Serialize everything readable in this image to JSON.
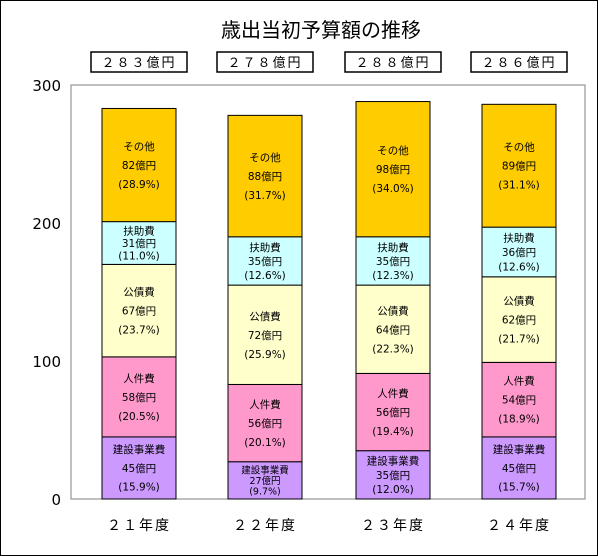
{
  "chart_data": {
    "type": "bar",
    "stacked": true,
    "title": "歳出当初予算額の推移",
    "categories": [
      "２１年度",
      "２２年度",
      "２３年度",
      "２４年度"
    ],
    "totals": [
      "２８３億円",
      "２７８億円",
      "２８８億円",
      "２８６億円"
    ],
    "total_values": [
      283,
      278,
      288,
      286
    ],
    "ylim": [
      0,
      300
    ],
    "yticks": [
      "0",
      "100",
      "200",
      "300"
    ],
    "grid": false,
    "legend": "none",
    "series": [
      {
        "name": "建設事業費",
        "color": "#cc99ff",
        "values": [
          45,
          27,
          35,
          45
        ],
        "amounts": [
          "45億円",
          "27億円",
          "35億円",
          "45億円"
        ],
        "shares": [
          "(15.9%)",
          "(9.7%)",
          "(12.0%)",
          "(15.7%)"
        ]
      },
      {
        "name": "人件費",
        "color": "#ff99cc",
        "values": [
          58,
          56,
          56,
          54
        ],
        "amounts": [
          "58億円",
          "56億円",
          "56億円",
          "54億円"
        ],
        "shares": [
          "(20.5%)",
          "(20.1%)",
          "(19.4%)",
          "(18.9%)"
        ]
      },
      {
        "name": "公債費",
        "color": "#ffffcc",
        "values": [
          67,
          72,
          64,
          62
        ],
        "amounts": [
          "67億円",
          "72億円",
          "64億円",
          "62億円"
        ],
        "shares": [
          "(23.7%)",
          "(25.9%)",
          "(22.3%)",
          "(21.7%)"
        ]
      },
      {
        "name": "扶助費",
        "color": "#ccffff",
        "values": [
          31,
          35,
          35,
          36
        ],
        "amounts": [
          "31億円",
          "35億円",
          "35億円",
          "36億円"
        ],
        "shares": [
          "(11.0%)",
          "(12.6%)",
          "(12.3%)",
          "(12.6%)"
        ]
      },
      {
        "name": "その他",
        "color": "#ffcc00",
        "values": [
          82,
          88,
          98,
          89
        ],
        "amounts": [
          "82億円",
          "88億円",
          "98億円",
          "89億円"
        ],
        "shares": [
          "(28.9%)",
          "(31.7%)",
          "(34.0%)",
          "(31.1%)"
        ]
      }
    ]
  }
}
